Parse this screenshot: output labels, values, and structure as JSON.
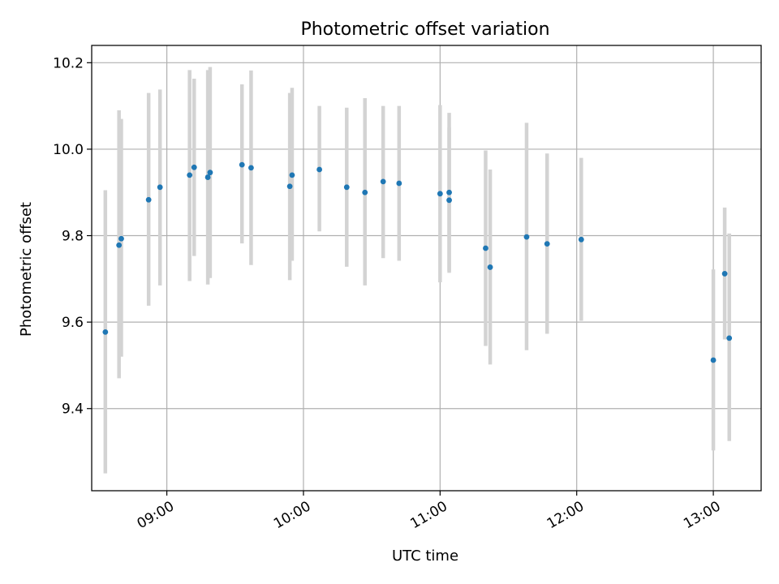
{
  "chart_data": {
    "type": "scatter",
    "title": "Photometric offset variation",
    "xlabel": "UTC time",
    "ylabel": "Photometric offset",
    "x_tick_labels": [
      "09:00",
      "10:00",
      "11:00",
      "12:00",
      "13:00"
    ],
    "y_tick_labels": [
      "9.4",
      "9.6",
      "9.8",
      "10.0",
      "10.2"
    ],
    "xlim": [
      "08:27",
      "13:21"
    ],
    "ylim": [
      9.21,
      10.24
    ],
    "grid": true,
    "colors": {
      "points": "#1f77b4",
      "errorbars": "#d3d3d3",
      "grid": "#b0b0b0"
    },
    "points": [
      {
        "x": "08:33",
        "y": 9.577,
        "ymin": 9.25,
        "ymax": 9.905
      },
      {
        "x": "08:39",
        "y": 9.778,
        "ymin": 9.47,
        "ymax": 10.09
      },
      {
        "x": "08:40",
        "y": 9.793,
        "ymin": 9.52,
        "ymax": 10.07
      },
      {
        "x": "08:52",
        "y": 9.883,
        "ymin": 9.638,
        "ymax": 10.13
      },
      {
        "x": "08:57",
        "y": 9.912,
        "ymin": 9.685,
        "ymax": 10.138
      },
      {
        "x": "09:10",
        "y": 9.94,
        "ymin": 9.695,
        "ymax": 10.183
      },
      {
        "x": "09:12",
        "y": 9.958,
        "ymin": 9.753,
        "ymax": 10.163
      },
      {
        "x": "09:18",
        "y": 9.935,
        "ymin": 9.687,
        "ymax": 10.183
      },
      {
        "x": "09:19",
        "y": 9.946,
        "ymin": 9.702,
        "ymax": 10.19
      },
      {
        "x": "09:33",
        "y": 9.964,
        "ymin": 9.782,
        "ymax": 10.15
      },
      {
        "x": "09:37",
        "y": 9.957,
        "ymin": 9.732,
        "ymax": 10.182
      },
      {
        "x": "09:54",
        "y": 9.914,
        "ymin": 9.697,
        "ymax": 10.13
      },
      {
        "x": "09:55",
        "y": 9.94,
        "ymin": 9.742,
        "ymax": 10.142
      },
      {
        "x": "10:07",
        "y": 9.953,
        "ymin": 9.81,
        "ymax": 10.1
      },
      {
        "x": "10:19",
        "y": 9.912,
        "ymin": 9.728,
        "ymax": 10.096
      },
      {
        "x": "10:27",
        "y": 9.9,
        "ymin": 9.685,
        "ymax": 10.118
      },
      {
        "x": "10:35",
        "y": 9.925,
        "ymin": 9.748,
        "ymax": 10.1
      },
      {
        "x": "10:42",
        "y": 9.921,
        "ymin": 9.742,
        "ymax": 10.1
      },
      {
        "x": "11:00",
        "y": 9.897,
        "ymin": 9.692,
        "ymax": 10.102
      },
      {
        "x": "11:04",
        "y": 9.9,
        "ymin": 9.718,
        "ymax": 10.084
      },
      {
        "x": "11:04",
        "y": 9.882,
        "ymin": 9.714,
        "ymax": 10.05
      },
      {
        "x": "11:20",
        "y": 9.771,
        "ymin": 9.545,
        "ymax": 9.997
      },
      {
        "x": "11:22",
        "y": 9.727,
        "ymin": 9.502,
        "ymax": 9.953
      },
      {
        "x": "11:38",
        "y": 9.797,
        "ymin": 9.535,
        "ymax": 10.061
      },
      {
        "x": "11:47",
        "y": 9.781,
        "ymin": 9.573,
        "ymax": 9.99
      },
      {
        "x": "12:02",
        "y": 9.791,
        "ymin": 9.603,
        "ymax": 9.98
      },
      {
        "x": "13:00",
        "y": 9.512,
        "ymin": 9.303,
        "ymax": 9.722
      },
      {
        "x": "13:05",
        "y": 9.712,
        "ymin": 9.56,
        "ymax": 9.865
      },
      {
        "x": "13:07",
        "y": 9.563,
        "ymin": 9.325,
        "ymax": 9.805
      }
    ]
  }
}
